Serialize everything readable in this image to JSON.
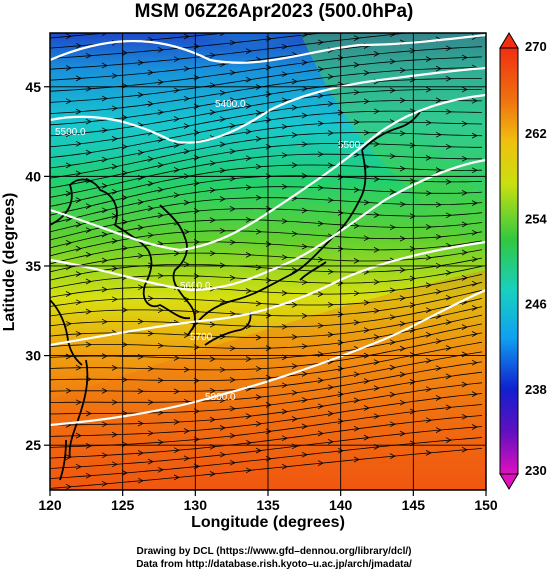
{
  "title": "MSM 06Z26Apr2023 (500.0hPa)",
  "map": {
    "lon_range": [
      120,
      150
    ],
    "lat_range": [
      22.5,
      48
    ],
    "x_ticks": [
      "120",
      "125",
      "130",
      "135",
      "140",
      "145",
      "150"
    ],
    "y_ticks": [
      "25",
      "30",
      "35",
      "40",
      "45"
    ],
    "x_tick_values": [
      120,
      125,
      130,
      135,
      140,
      145,
      150
    ],
    "y_tick_values": [
      25,
      30,
      35,
      40,
      45
    ],
    "xlabel": "Longitude (degrees)",
    "ylabel": "Latitude  (degrees)",
    "contour_labels": [
      "5400.0",
      "5500",
      "5600.0",
      "5700",
      "5800.0",
      "5500.0"
    ]
  },
  "colorbar": {
    "min": 230,
    "max": 270,
    "tick_labels": [
      "270",
      "262",
      "254",
      "246",
      "238",
      "230"
    ]
  },
  "credits": {
    "line1": "Drawing by DCL (https://www.gfd–dennou.org/library/dcl/)",
    "line2": "Data from http://database.rish.kyoto–u.ac.jp/arch/jmadata/"
  }
}
